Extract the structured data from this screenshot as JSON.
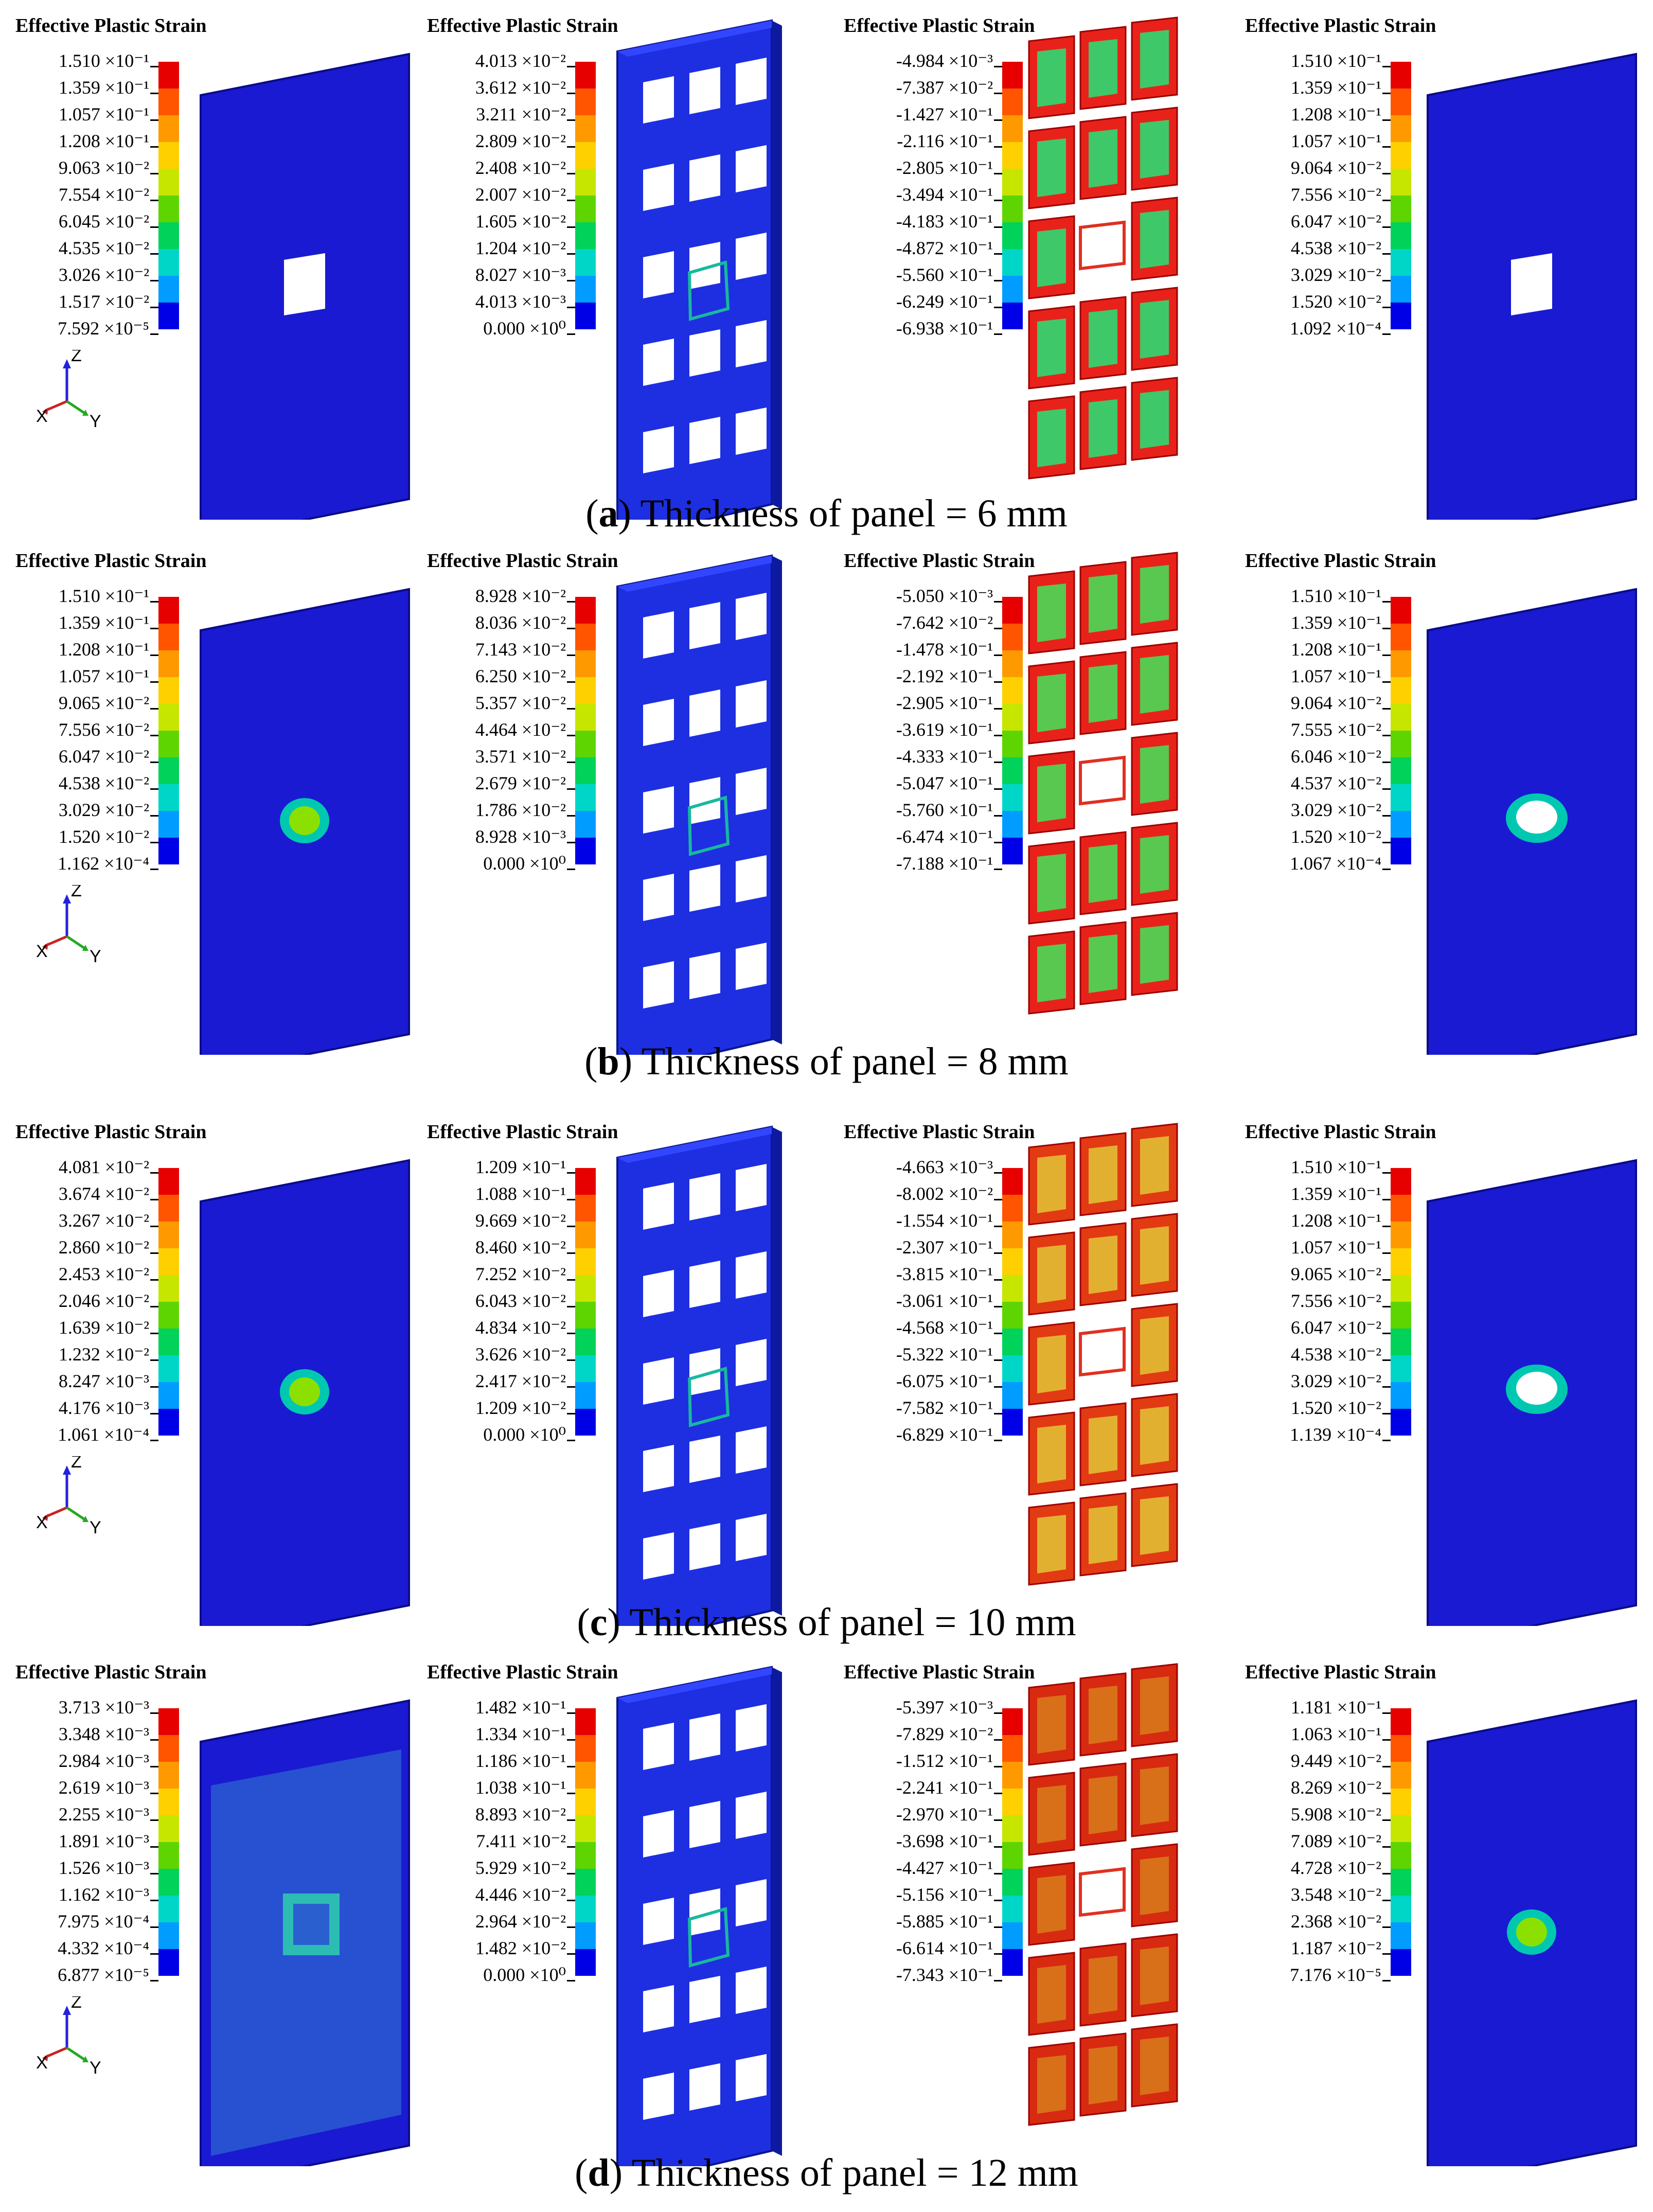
{
  "legend_title": "Effective Plastic Strain",
  "colors": [
    "#e60000",
    "#ff5500",
    "#ff9900",
    "#ffd000",
    "#c6e600",
    "#5ed400",
    "#00d25a",
    "#00d6c8",
    "#009cff",
    "#1e46ff",
    "#0000e6"
  ],
  "axes": {
    "z": "Z",
    "x": "X",
    "y": "Y"
  },
  "rows": [
    {
      "caption_letter": "a",
      "caption_text": "Thickness of panel = 6 mm",
      "legends": [
        {
          "values": [
            "1.510 ×10⁻¹",
            "1.359 ×10⁻¹",
            "1.057 ×10⁻¹",
            "1.208 ×10⁻¹",
            "9.063 ×10⁻²",
            "7.554 ×10⁻²",
            "6.045 ×10⁻²",
            "4.535 ×10⁻²",
            "3.026 ×10⁻²",
            "1.517 ×10⁻²",
            "7.592 ×10⁻⁵"
          ]
        },
        {
          "values": [
            "4.013 ×10⁻²",
            "3.612 ×10⁻²",
            "3.211 ×10⁻²",
            "2.809 ×10⁻²",
            "2.408 ×10⁻²",
            "2.007 ×10⁻²",
            "1.605 ×10⁻²",
            "1.204 ×10⁻²",
            "8.027 ×10⁻³",
            "4.013 ×10⁻³",
            "0.000 ×10⁰"
          ]
        },
        {
          "values": [
            "-4.984 ×10⁻³",
            "-7.387 ×10⁻²",
            "-1.427 ×10⁻¹",
            "-2.116 ×10⁻¹",
            "-2.805 ×10⁻¹",
            "-3.494 ×10⁻¹",
            "-4.183 ×10⁻¹",
            "-4.872 ×10⁻¹",
            "-5.560 ×10⁻¹",
            "-6.249 ×10⁻¹",
            "-6.938 ×10⁻¹"
          ]
        },
        {
          "values": [
            "1.510 ×10⁻¹",
            "1.359 ×10⁻¹",
            "1.208 ×10⁻¹",
            "1.057 ×10⁻¹",
            "9.064 ×10⁻²",
            "7.556 ×10⁻²",
            "6.047 ×10⁻²",
            "4.538 ×10⁻²",
            "3.029 ×10⁻²",
            "1.520 ×10⁻²",
            "1.092 ×10⁻⁴"
          ]
        }
      ]
    },
    {
      "caption_letter": "b",
      "caption_text": "Thickness of panel = 8 mm",
      "legends": [
        {
          "values": [
            "1.510 ×10⁻¹",
            "1.359 ×10⁻¹",
            "1.208 ×10⁻¹",
            "1.057 ×10⁻¹",
            "9.065 ×10⁻²",
            "7.556 ×10⁻²",
            "6.047 ×10⁻²",
            "4.538 ×10⁻²",
            "3.029 ×10⁻²",
            "1.520 ×10⁻²",
            "1.162 ×10⁻⁴"
          ]
        },
        {
          "values": [
            "8.928 ×10⁻²",
            "8.036 ×10⁻²",
            "7.143 ×10⁻²",
            "6.250 ×10⁻²",
            "5.357 ×10⁻²",
            "4.464 ×10⁻²",
            "3.571 ×10⁻²",
            "2.679 ×10⁻²",
            "1.786 ×10⁻²",
            "8.928 ×10⁻³",
            "0.000 ×10⁰"
          ]
        },
        {
          "values": [
            "-5.050 ×10⁻³",
            "-7.642 ×10⁻²",
            "-1.478 ×10⁻¹",
            "-2.192 ×10⁻¹",
            "-2.905 ×10⁻¹",
            "-3.619 ×10⁻¹",
            "-4.333 ×10⁻¹",
            "-5.047 ×10⁻¹",
            "-5.760 ×10⁻¹",
            "-6.474 ×10⁻¹",
            "-7.188 ×10⁻¹"
          ]
        },
        {
          "values": [
            "1.510 ×10⁻¹",
            "1.359 ×10⁻¹",
            "1.208 ×10⁻¹",
            "1.057 ×10⁻¹",
            "9.064 ×10⁻²",
            "7.555 ×10⁻²",
            "6.046 ×10⁻²",
            "4.537 ×10⁻²",
            "3.029 ×10⁻²",
            "1.520 ×10⁻²",
            "1.067 ×10⁻⁴"
          ]
        }
      ]
    },
    {
      "caption_letter": "c",
      "caption_text": "Thickness of panel = 10 mm",
      "legends": [
        {
          "values": [
            "4.081 ×10⁻²",
            "3.674 ×10⁻²",
            "3.267 ×10⁻²",
            "2.860 ×10⁻²",
            "2.453 ×10⁻²",
            "2.046 ×10⁻²",
            "1.639 ×10⁻²",
            "1.232 ×10⁻²",
            "8.247 ×10⁻³",
            "4.176 ×10⁻³",
            "1.061 ×10⁻⁴"
          ]
        },
        {
          "values": [
            "1.209 ×10⁻¹",
            "1.088 ×10⁻¹",
            "9.669 ×10⁻²",
            "8.460 ×10⁻²",
            "7.252 ×10⁻²",
            "6.043 ×10⁻²",
            "4.834 ×10⁻²",
            "3.626 ×10⁻²",
            "2.417 ×10⁻²",
            "1.209 ×10⁻²",
            "0.000 ×10⁰"
          ]
        },
        {
          "values": [
            "-4.663 ×10⁻³",
            "-8.002 ×10⁻²",
            "-1.554 ×10⁻¹",
            "-2.307 ×10⁻¹",
            "-3.815 ×10⁻¹",
            "-3.061 ×10⁻¹",
            "-4.568 ×10⁻¹",
            "-5.322 ×10⁻¹",
            "-6.075 ×10⁻¹",
            "-7.582 ×10⁻¹",
            "-6.829 ×10⁻¹"
          ]
        },
        {
          "values": [
            "1.510 ×10⁻¹",
            "1.359 ×10⁻¹",
            "1.208 ×10⁻¹",
            "1.057 ×10⁻¹",
            "9.065 ×10⁻²",
            "7.556 ×10⁻²",
            "6.047 ×10⁻²",
            "4.538 ×10⁻²",
            "3.029 ×10⁻²",
            "1.520 ×10⁻²",
            "1.139 ×10⁻⁴"
          ]
        }
      ]
    },
    {
      "caption_letter": "d",
      "caption_text": "Thickness of panel = 12 mm",
      "legends": [
        {
          "values": [
            "3.713 ×10⁻³",
            "3.348 ×10⁻³",
            "2.984 ×10⁻³",
            "2.619 ×10⁻³",
            "2.255 ×10⁻³",
            "1.891 ×10⁻³",
            "1.526 ×10⁻³",
            "1.162 ×10⁻³",
            "7.975 ×10⁻⁴",
            "4.332 ×10⁻⁴",
            "6.877 ×10⁻⁵"
          ]
        },
        {
          "values": [
            "1.482 ×10⁻¹",
            "1.334 ×10⁻¹",
            "1.186 ×10⁻¹",
            "1.038 ×10⁻¹",
            "8.893 ×10⁻²",
            "7.411 ×10⁻²",
            "5.929 ×10⁻²",
            "4.446 ×10⁻²",
            "2.964 ×10⁻²",
            "1.482 ×10⁻²",
            "0.000 ×10⁰"
          ]
        },
        {
          "values": [
            "-5.397 ×10⁻³",
            "-7.829 ×10⁻²",
            "-1.512 ×10⁻¹",
            "-2.241 ×10⁻¹",
            "-2.970 ×10⁻¹",
            "-3.698 ×10⁻¹",
            "-4.427 ×10⁻¹",
            "-5.156 ×10⁻¹",
            "-5.885 ×10⁻¹",
            "-6.614 ×10⁻¹",
            "-7.343 ×10⁻¹"
          ]
        },
        {
          "values": [
            "1.181 ×10⁻¹",
            "1.063 ×10⁻¹",
            "9.449 ×10⁻²",
            "8.269 ×10⁻²",
            "5.908 ×10⁻²",
            "7.089 ×10⁻²",
            "4.728 ×10⁻²",
            "3.548 ×10⁻²",
            "2.368 ×10⁻²",
            "1.187 ×10⁻²",
            "7.176 ×10⁻⁵"
          ]
        }
      ]
    }
  ]
}
